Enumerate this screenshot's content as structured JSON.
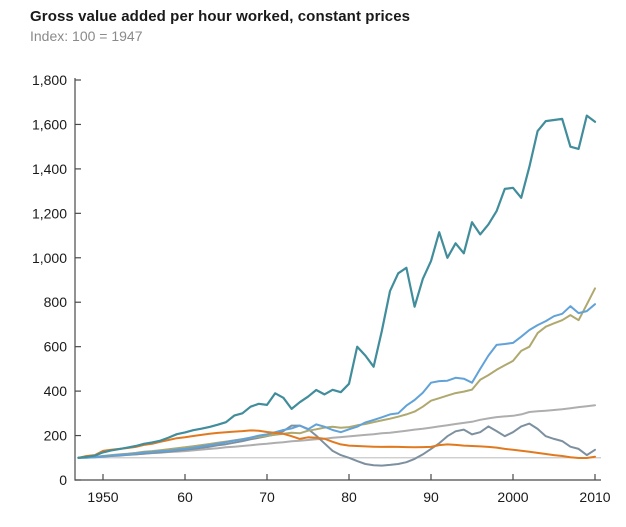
{
  "header": {
    "title": "Gross value added per hour worked, constant prices",
    "subtitle": "Index: 100 = 1947"
  },
  "colors": {
    "title_text": "#1a1a1a",
    "subtitle_text": "#8a8a8a",
    "axis": "#4a4a4a",
    "tick_text": "#1a1a1a",
    "reference_line": "#c8c8c8",
    "teal": "#418d9b",
    "light_blue": "#61a2d8",
    "olive": "#afa86f",
    "light_gray": "#aeaeae",
    "slate_gray": "#7d90a0",
    "orange": "#e1791f"
  },
  "chart_data": {
    "type": "line",
    "title": "Gross value added per hour worked, constant prices",
    "subtitle": "Index: 100 = 1947",
    "xlabel": "",
    "ylabel": "",
    "xlim": [
      1947,
      2010
    ],
    "ylim": [
      0,
      1800
    ],
    "grid": false,
    "legend_position": "none",
    "x_tick_years": [
      1950,
      1960,
      1970,
      1980,
      1990,
      2000,
      2010
    ],
    "x_tick_labels": [
      "1950",
      "60",
      "70",
      "80",
      "90",
      "2000",
      "2010"
    ],
    "y_ticks": [
      0,
      200,
      400,
      600,
      800,
      1000,
      1200,
      1400,
      1600,
      1800
    ],
    "y_tick_labels": [
      "0",
      "200",
      "400",
      "600",
      "800",
      "1,000",
      "1,200",
      "1,400",
      "1,600",
      "1,800"
    ],
    "reference_line": {
      "value": 100,
      "color": "#c8c8c8"
    },
    "years": [
      1947,
      1948,
      1949,
      1950,
      1951,
      1952,
      1953,
      1954,
      1955,
      1956,
      1957,
      1958,
      1959,
      1960,
      1961,
      1962,
      1963,
      1964,
      1965,
      1966,
      1967,
      1968,
      1969,
      1970,
      1971,
      1972,
      1973,
      1974,
      1975,
      1976,
      1977,
      1978,
      1979,
      1980,
      1981,
      1982,
      1983,
      1984,
      1985,
      1986,
      1987,
      1988,
      1989,
      1990,
      1991,
      1992,
      1993,
      1994,
      1995,
      1996,
      1997,
      1998,
      1999,
      2000,
      2001,
      2002,
      2003,
      2004,
      2005,
      2006,
      2007,
      2008,
      2009,
      2010
    ],
    "series": [
      {
        "name": "light-gray",
        "color": "#aeaeae",
        "stroke_width": 2,
        "values": [
          100,
          102,
          104,
          106,
          109,
          111,
          114,
          116,
          118,
          121,
          123,
          126,
          128,
          130,
          133,
          137,
          140,
          143,
          147,
          150,
          153,
          156,
          160,
          163,
          167,
          170,
          174,
          177,
          180,
          183,
          186,
          190,
          193,
          196,
          200,
          203,
          206,
          210,
          213,
          217,
          222,
          227,
          231,
          236,
          241,
          246,
          252,
          257,
          262,
          271,
          277,
          283,
          286,
          289,
          295,
          306,
          309,
          312,
          315,
          318,
          323,
          328,
          332,
          336
        ]
      },
      {
        "name": "slate-gray",
        "color": "#7d90a0",
        "stroke_width": 2,
        "values": [
          100,
          101,
          102,
          105,
          108,
          110,
          113,
          115,
          119,
          122,
          125,
          128,
          132,
          136,
          140,
          145,
          150,
          156,
          161,
          168,
          175,
          183,
          190,
          197,
          205,
          220,
          245,
          245,
          230,
          200,
          165,
          131,
          112,
          100,
          85,
          72,
          66,
          65,
          68,
          72,
          80,
          95,
          115,
          140,
          165,
          197,
          219,
          227,
          205,
          215,
          241,
          220,
          197,
          215,
          241,
          254,
          230,
          197,
          185,
          175,
          150,
          140,
          112,
          136
        ]
      },
      {
        "name": "olive",
        "color": "#afa86f",
        "stroke_width": 2,
        "values": [
          100,
          102,
          104,
          108,
          112,
          115,
          118,
          122,
          127,
          130,
          134,
          138,
          143,
          147,
          152,
          157,
          162,
          168,
          173,
          178,
          184,
          190,
          195,
          199,
          204,
          208,
          213,
          210,
          222,
          228,
          236,
          240,
          235,
          238,
          246,
          252,
          260,
          268,
          276,
          285,
          295,
          308,
          330,
          357,
          368,
          380,
          391,
          398,
          407,
          451,
          472,
          496,
          516,
          536,
          581,
          600,
          661,
          690,
          705,
          719,
          742,
          719,
          790,
          862
        ]
      },
      {
        "name": "light-blue",
        "color": "#61a2d8",
        "stroke_width": 2,
        "values": [
          100,
          100,
          102,
          107,
          110,
          113,
          116,
          119,
          124,
          126,
          129,
          132,
          137,
          140,
          145,
          151,
          157,
          163,
          170,
          177,
          183,
          191,
          200,
          205,
          215,
          225,
          232,
          245,
          228,
          250,
          240,
          225,
          215,
          228,
          240,
          259,
          270,
          282,
          295,
          300,
          335,
          360,
          393,
          438,
          445,
          447,
          460,
          456,
          438,
          500,
          560,
          608,
          612,
          617,
          645,
          675,
          697,
          715,
          737,
          748,
          782,
          751,
          760,
          791
        ]
      },
      {
        "name": "orange",
        "color": "#e1791f",
        "stroke_width": 2,
        "values": [
          100,
          108,
          112,
          131,
          136,
          140,
          144,
          149,
          158,
          163,
          172,
          180,
          188,
          192,
          198,
          203,
          208,
          212,
          215,
          218,
          220,
          223,
          222,
          216,
          212,
          208,
          197,
          185,
          192,
          190,
          186,
          172,
          160,
          155,
          153,
          151,
          150,
          149,
          150,
          149,
          148,
          147,
          148,
          149,
          157,
          160,
          158,
          155,
          153,
          151,
          149,
          146,
          140,
          136,
          132,
          127,
          122,
          117,
          112,
          108,
          102,
          99,
          99,
          105
        ]
      },
      {
        "name": "teal",
        "color": "#418d9b",
        "stroke_width": 2.2,
        "values": [
          100,
          104,
          110,
          124,
          133,
          139,
          146,
          153,
          163,
          169,
          177,
          191,
          206,
          214,
          224,
          231,
          239,
          249,
          260,
          290,
          300,
          330,
          343,
          338,
          390,
          370,
          320,
          350,
          375,
          405,
          385,
          406,
          395,
          433,
          600,
          560,
          510,
          670,
          850,
          930,
          955,
          780,
          905,
          985,
          1115,
          1000,
          1065,
          1020,
          1160,
          1105,
          1150,
          1210,
          1310,
          1315,
          1270,
          1410,
          1570,
          1615,
          1620,
          1625,
          1500,
          1490,
          1640,
          1612
        ]
      }
    ]
  }
}
